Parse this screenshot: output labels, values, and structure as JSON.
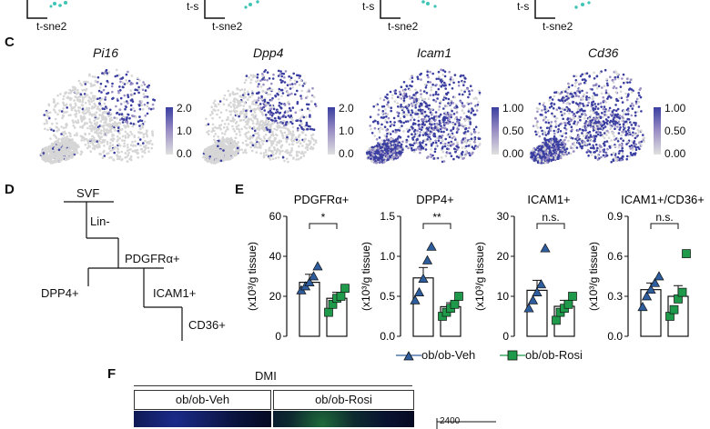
{
  "panelB_fragment": {
    "axis_x": "t-sne2",
    "axis_y": "t-s"
  },
  "panelC": {
    "letter": "C",
    "plots": [
      {
        "gene": "Pi16",
        "colorbar": [
          "2.0",
          "1.0",
          "0.0"
        ]
      },
      {
        "gene": "Dpp4",
        "colorbar": [
          "2.0",
          "1.0",
          "0.0"
        ]
      },
      {
        "gene": "Icam1",
        "colorbar": [
          "1.00",
          "0.50",
          "0.00"
        ]
      },
      {
        "gene": "Cd36",
        "colorbar": [
          "1.00",
          "0.50",
          "0.00"
        ]
      }
    ],
    "colors": {
      "low": "#d6d6d6",
      "mid": "#9b8fc4",
      "high": "#3a3ea0"
    }
  },
  "panelD": {
    "letter": "D",
    "nodes": [
      "SVF",
      "Lin-",
      "PDGFRα+",
      "DPP4+",
      "ICAM1+",
      "CD36+"
    ]
  },
  "panelE": {
    "letter": "E",
    "ylabel": "(x10³/g tissue)",
    "legend": [
      {
        "label": "ob/ob-Veh",
        "color": "#2e5d9e",
        "marker": "triangle"
      },
      {
        "label": "ob/ob-Rosi",
        "color": "#1f9a4a",
        "marker": "square"
      }
    ]
  },
  "chart_data": [
    {
      "type": "bar",
      "title": "PDGFRα+",
      "ylabel": "(x10³/g tissue)",
      "ylim": [
        0,
        60
      ],
      "yticks": [
        "0",
        "20",
        "40",
        "60"
      ],
      "categories": [
        "ob/ob-Veh",
        "ob/ob-Rosi"
      ],
      "values": [
        27,
        19
      ],
      "errors": [
        4,
        3
      ],
      "points": [
        [
          23,
          25,
          27,
          30,
          35
        ],
        [
          12,
          16,
          19,
          20,
          24
        ]
      ],
      "significance": "*"
    },
    {
      "type": "bar",
      "title": "DPP4+",
      "ylabel": "(x10³/g tissue)",
      "ylim": [
        0,
        1.5
      ],
      "yticks": [
        "0.0",
        "0.5",
        "1.0",
        "1.5"
      ],
      "categories": [
        "ob/ob-Veh",
        "ob/ob-Rosi"
      ],
      "values": [
        0.73,
        0.37
      ],
      "errors": [
        0.13,
        0.05
      ],
      "points": [
        [
          0.45,
          0.55,
          0.72,
          0.95,
          1.12
        ],
        [
          0.25,
          0.3,
          0.35,
          0.4,
          0.5
        ]
      ],
      "significance": "**"
    },
    {
      "type": "bar",
      "title": "ICAM1+",
      "ylabel": "(x10³/g tissue)",
      "ylim": [
        0,
        30
      ],
      "yticks": [
        "0",
        "10",
        "20",
        "30"
      ],
      "categories": [
        "ob/ob-Veh",
        "ob/ob-Rosi"
      ],
      "values": [
        11.5,
        7.5
      ],
      "errors": [
        2.5,
        1.5
      ],
      "points": [
        [
          7,
          9,
          11,
          13,
          22
        ],
        [
          4,
          6,
          7,
          8,
          10
        ]
      ],
      "significance": "n.s."
    },
    {
      "type": "bar",
      "title": "ICAM1+/CD36+",
      "ylabel": "(x10³/g tissue)",
      "ylim": [
        0,
        0.9
      ],
      "yticks": [
        "0.0",
        "0.3",
        "0.6",
        "0.9"
      ],
      "categories": [
        "ob/ob-Veh",
        "ob/ob-Rosi"
      ],
      "values": [
        0.35,
        0.3
      ],
      "errors": [
        0.05,
        0.08
      ],
      "points": [
        [
          0.22,
          0.3,
          0.35,
          0.4,
          0.45
        ],
        [
          0.15,
          0.2,
          0.28,
          0.33,
          0.62
        ]
      ],
      "significance": "n.s."
    }
  ],
  "panelF": {
    "letter": "F",
    "group": "DMI",
    "conditions": [
      "ob/ob-Veh",
      "ob/ob-Rosi"
    ],
    "partial_tick": "2400"
  }
}
